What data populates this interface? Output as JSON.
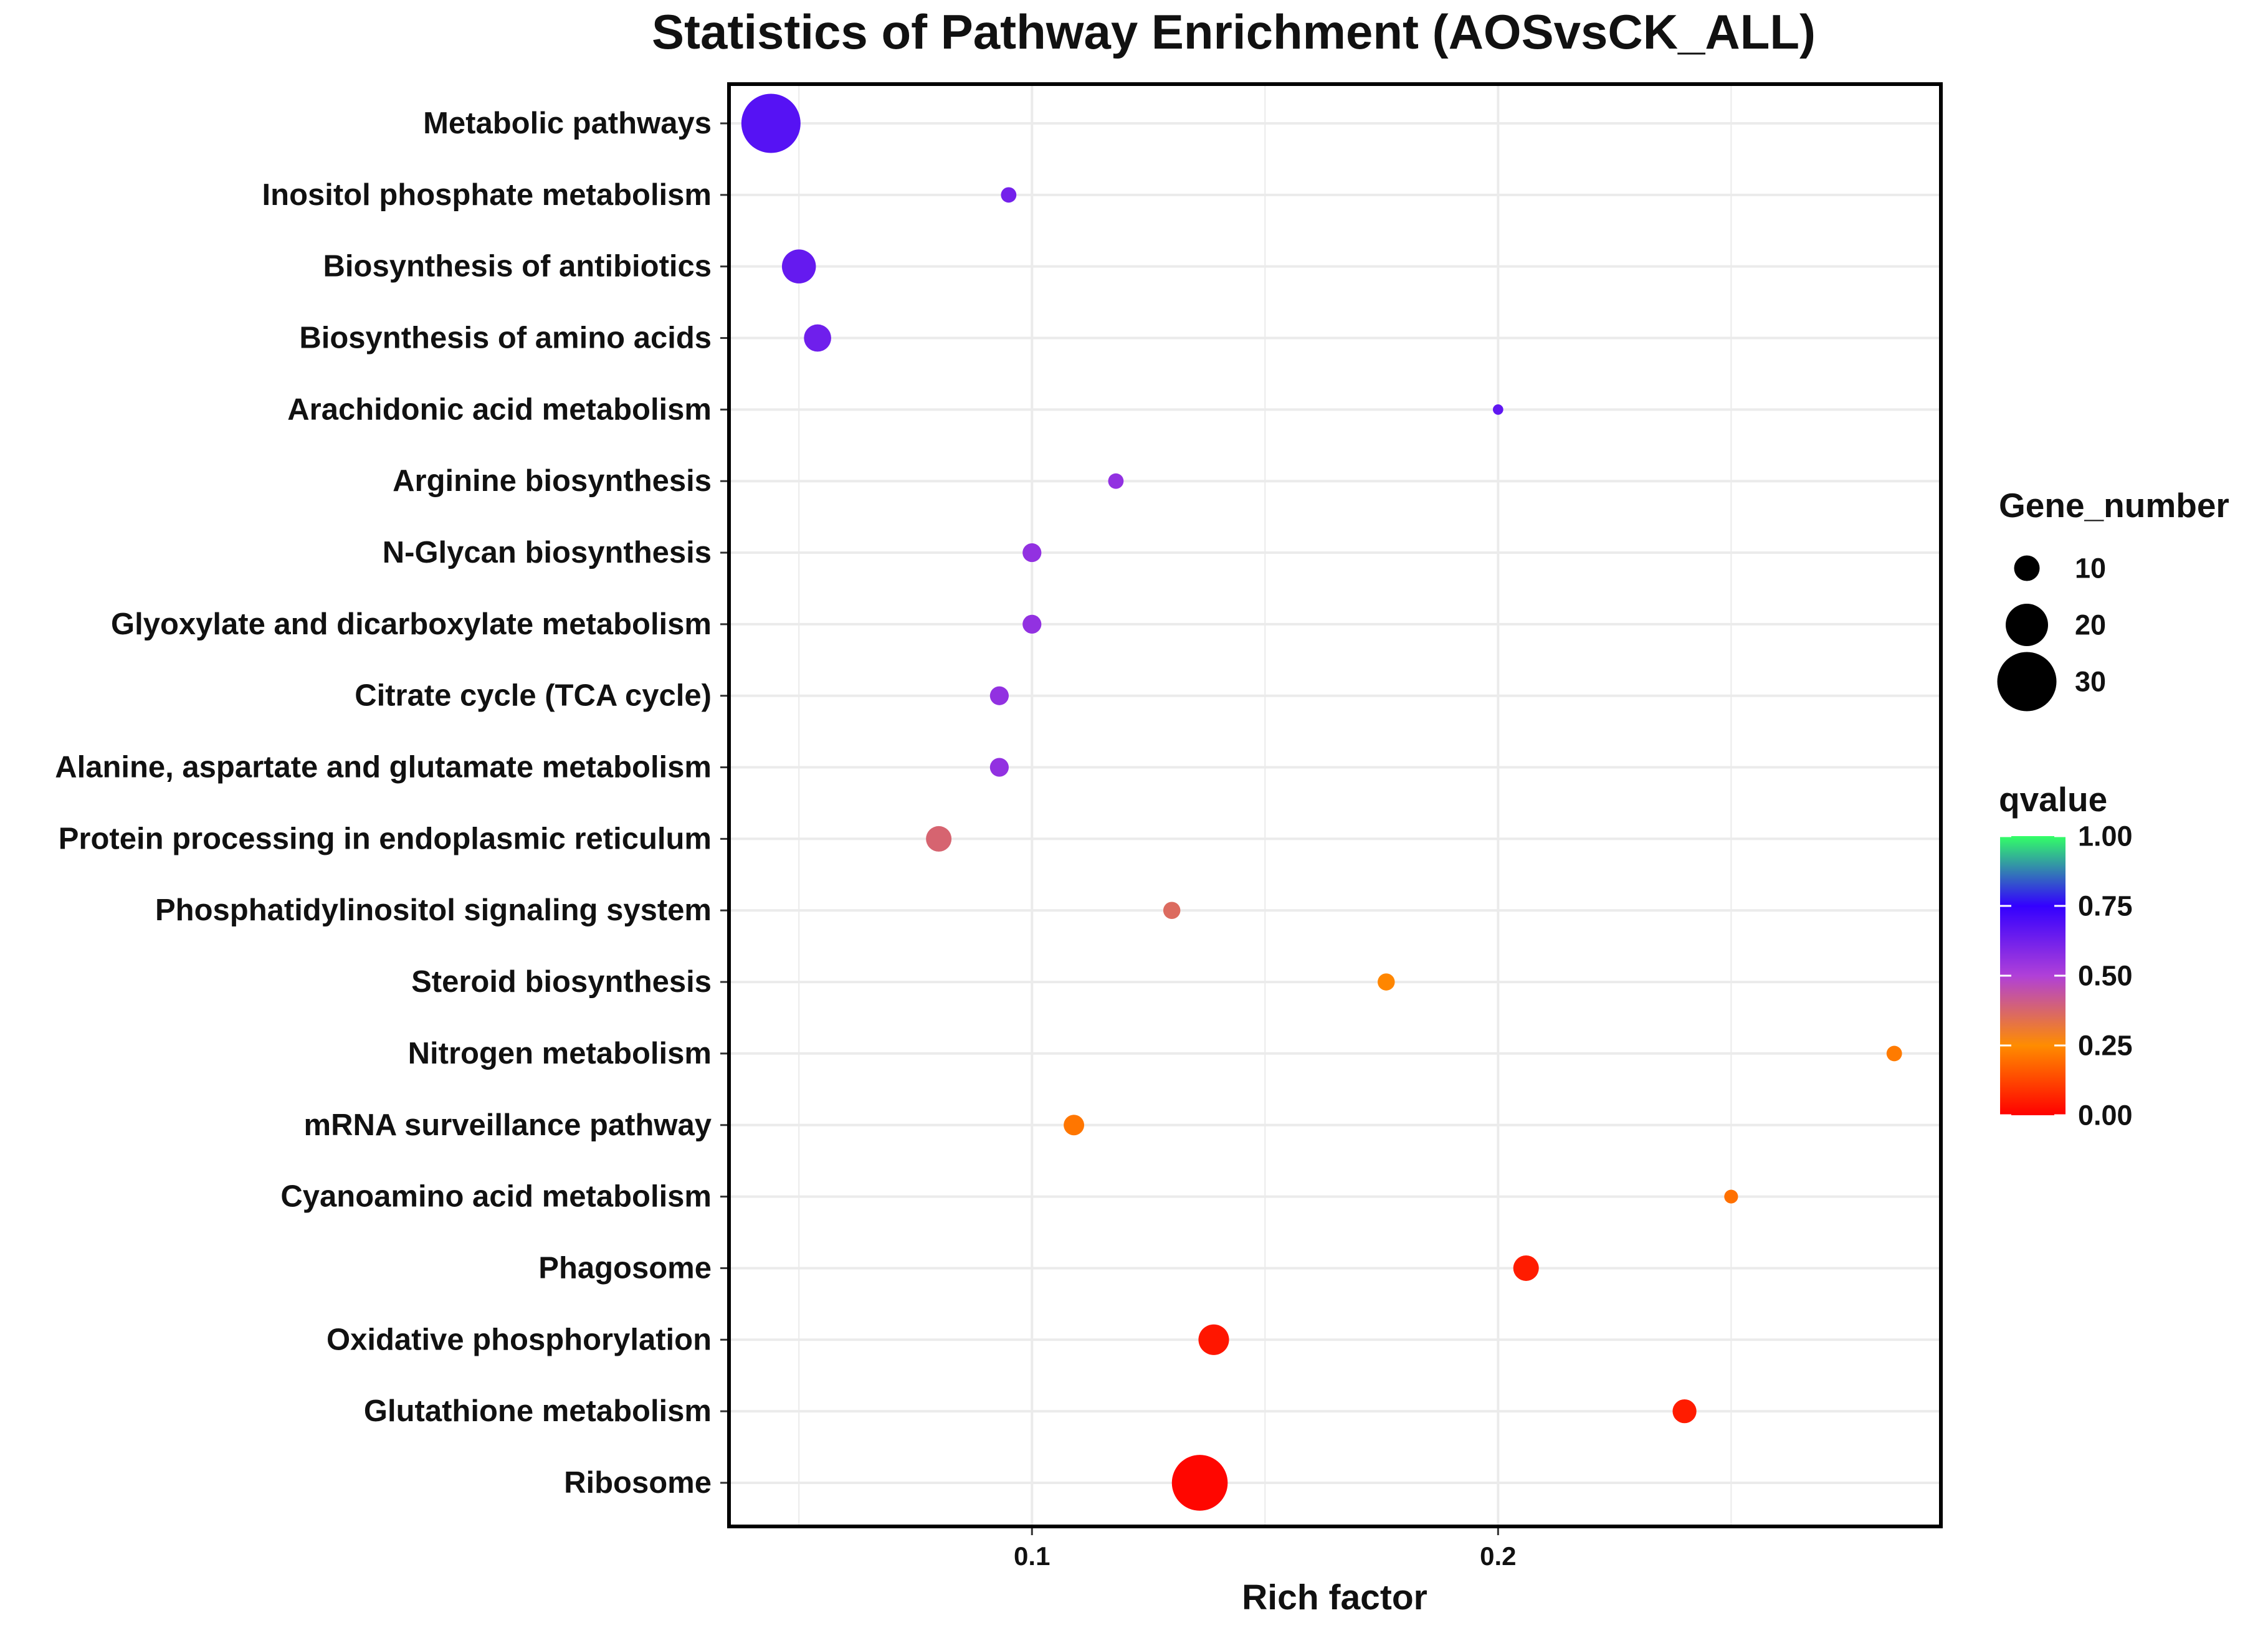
{
  "chart_data": {
    "type": "scatter",
    "title": "Statistics of Pathway Enrichment (AOSvsCK_ALL)",
    "xlabel": "Rich factor",
    "ylabel": "",
    "xlim": [
      0.035,
      0.295
    ],
    "x_ticks": [
      {
        "value": 0.1,
        "label": "0.1"
      },
      {
        "value": 0.2,
        "label": "0.2"
      }
    ],
    "grid": true,
    "legend_position": "right",
    "categories": [
      "Metabolic pathways",
      "Inositol phosphate metabolism",
      "Biosynthesis of antibiotics",
      "Biosynthesis of amino acids",
      "Arachidonic acid metabolism",
      "Arginine biosynthesis",
      "N-Glycan biosynthesis",
      "Glyoxylate and dicarboxylate metabolism",
      "Citrate cycle (TCA cycle)",
      "Alanine, aspartate and glutamate metabolism",
      "Protein processing in endoplasmic reticulum",
      "Phosphatidylinositol signaling system",
      "Steroid biosynthesis",
      "Nitrogen metabolism",
      "mRNA surveillance pathway",
      "Cyanoamino acid metabolism",
      "Phagosome",
      "Oxidative phosphorylation",
      "Glutathione metabolism",
      "Ribosome"
    ],
    "points": [
      {
        "pathway": "Metabolic pathways",
        "rich_factor": 0.044,
        "gene_number": 30,
        "qvalue": 0.68
      },
      {
        "pathway": "Inositol phosphate metabolism",
        "rich_factor": 0.095,
        "gene_number": 4,
        "qvalue": 0.62
      },
      {
        "pathway": "Biosynthesis of antibiotics",
        "rich_factor": 0.05,
        "gene_number": 15,
        "qvalue": 0.65
      },
      {
        "pathway": "Biosynthesis of amino acids",
        "rich_factor": 0.054,
        "gene_number": 11,
        "qvalue": 0.63
      },
      {
        "pathway": "Arachidonic acid metabolism",
        "rich_factor": 0.2,
        "gene_number": 1,
        "qvalue": 0.66
      },
      {
        "pathway": "Arginine biosynthesis",
        "rich_factor": 0.118,
        "gene_number": 4,
        "qvalue": 0.56
      },
      {
        "pathway": "N-Glycan biosynthesis",
        "rich_factor": 0.1,
        "gene_number": 6,
        "qvalue": 0.56
      },
      {
        "pathway": "Glyoxylate and dicarboxylate metabolism",
        "rich_factor": 0.1,
        "gene_number": 6,
        "qvalue": 0.56
      },
      {
        "pathway": "Citrate cycle (TCA cycle)",
        "rich_factor": 0.093,
        "gene_number": 6,
        "qvalue": 0.56
      },
      {
        "pathway": "Alanine, aspartate and glutamate metabolism",
        "rich_factor": 0.093,
        "gene_number": 6,
        "qvalue": 0.56
      },
      {
        "pathway": "Protein processing in endoplasmic reticulum",
        "rich_factor": 0.08,
        "gene_number": 10,
        "qvalue": 0.38
      },
      {
        "pathway": "Phosphatidylinositol signaling system",
        "rich_factor": 0.13,
        "gene_number": 5,
        "qvalue": 0.36
      },
      {
        "pathway": "Steroid biosynthesis",
        "rich_factor": 0.176,
        "gene_number": 5,
        "qvalue": 0.24
      },
      {
        "pathway": "Nitrogen metabolism",
        "rich_factor": 0.285,
        "gene_number": 4,
        "qvalue": 0.22
      },
      {
        "pathway": "mRNA surveillance pathway",
        "rich_factor": 0.109,
        "gene_number": 7,
        "qvalue": 0.21
      },
      {
        "pathway": "Cyanoamino acid metabolism",
        "rich_factor": 0.25,
        "gene_number": 3,
        "qvalue": 0.2
      },
      {
        "pathway": "Phagosome",
        "rich_factor": 0.206,
        "gene_number": 10,
        "qvalue": 0.05
      },
      {
        "pathway": "Oxidative phosphorylation",
        "rich_factor": 0.139,
        "gene_number": 13,
        "qvalue": 0.04
      },
      {
        "pathway": "Glutathione metabolism",
        "rich_factor": 0.24,
        "gene_number": 9,
        "qvalue": 0.05
      },
      {
        "pathway": "Ribosome",
        "rich_factor": 0.136,
        "gene_number": 28,
        "qvalue": 0.01
      }
    ],
    "size_legend": {
      "title": "Gene_number",
      "entries": [
        {
          "value": 10,
          "label": "10"
        },
        {
          "value": 20,
          "label": "20"
        },
        {
          "value": 30,
          "label": "30"
        }
      ]
    },
    "color_legend": {
      "title": "qvalue",
      "min": 0.0,
      "max": 1.0,
      "ticks": [
        {
          "value": 1.0,
          "label": "1.00"
        },
        {
          "value": 0.75,
          "label": "0.75"
        },
        {
          "value": 0.5,
          "label": "0.50"
        },
        {
          "value": 0.25,
          "label": "0.25"
        },
        {
          "value": 0.0,
          "label": "0.00"
        }
      ],
      "stops": [
        {
          "value": 0.0,
          "color": "#ff0000"
        },
        {
          "value": 0.25,
          "color": "#ff8c00"
        },
        {
          "value": 0.5,
          "color": "#b040d8"
        },
        {
          "value": 0.75,
          "color": "#3300ff"
        },
        {
          "value": 1.0,
          "color": "#33ff66"
        }
      ]
    },
    "colors": {
      "panel_border": "#000000",
      "grid": "#ebebeb",
      "text": "#111111"
    }
  }
}
